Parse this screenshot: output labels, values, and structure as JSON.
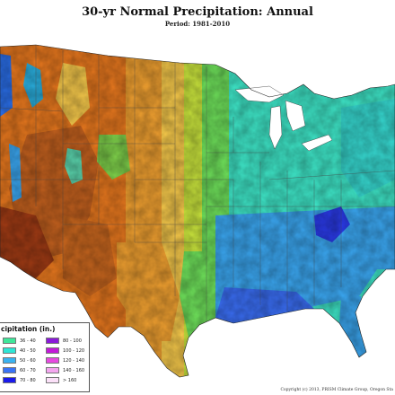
{
  "title": "30-yr Normal Precipitation: Annual",
  "subtitle": "Period: 1981-2010",
  "legend": {
    "title": "cipitation (in.)",
    "items": [
      {
        "label": "36 - 40",
        "color": "#3fe69a"
      },
      {
        "label": "40 - 50",
        "color": "#2ee6d5"
      },
      {
        "label": "50 - 60",
        "color": "#3ab3f0"
      },
      {
        "label": "60 - 70",
        "color": "#3a73f5"
      },
      {
        "label": "70 - 80",
        "color": "#1a1aeb"
      },
      {
        "label": "80 - 100",
        "color": "#8a1ad8"
      },
      {
        "label": "100 - 120",
        "color": "#c21ad8"
      },
      {
        "label": "120 - 140",
        "color": "#e64ae0"
      },
      {
        "label": "140 - 160",
        "color": "#f4a6ef"
      },
      {
        "label": "> 160",
        "color": "#fbe0f8"
      }
    ]
  },
  "copyright": "Copyright (c) 2013, PRISM Climate Group, Oregon Sta",
  "colors": {
    "desert": "#b8501e",
    "dry": "#e8781e",
    "semi_dry": "#f0a030",
    "plains": "#f5c84a",
    "transition": "#c9e43c",
    "mid": "#6ee05a",
    "east": "#3ee6c8",
    "south": "#3aa6f0",
    "coast": "#3a6ef5",
    "mountain_wet": "#2aa0f0"
  }
}
